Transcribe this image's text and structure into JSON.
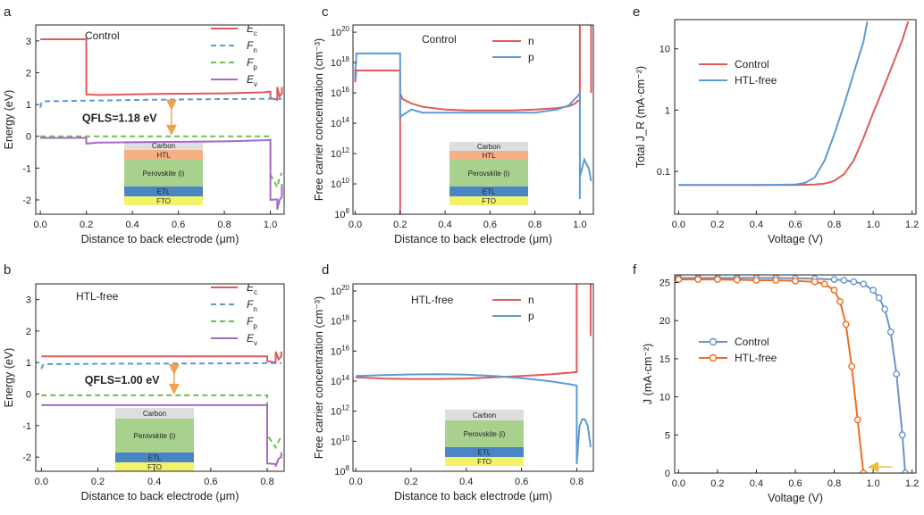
{
  "colors": {
    "red": "#e05a5a",
    "blue": "#5b9bd5",
    "green": "#6cc24a",
    "purple": "#a968c8",
    "orange": "#f0a14d",
    "sblue": "#6b93c9",
    "sorange": "#f26b1d",
    "yellow": "#f5b93a"
  },
  "stacks": {
    "with_htl": [
      {
        "label": "Carbon",
        "color": "#dedede"
      },
      {
        "label": "HTL",
        "color": "#f4b183"
      },
      {
        "label": "Perovskite (i)",
        "color": "#a9d18e"
      },
      {
        "label": "ETL",
        "color": "#4a86c5"
      },
      {
        "label": "FTO",
        "color": "#f3f36a"
      }
    ],
    "htl_free": [
      {
        "label": "Carbon",
        "color": "#dedede"
      },
      {
        "label": "Perovskite (i)",
        "color": "#a9d18e"
      },
      {
        "label": "ETL",
        "color": "#4a86c5"
      },
      {
        "label": "FTO",
        "color": "#f3f36a"
      }
    ]
  },
  "chart_data": [
    {
      "panel": "a",
      "type": "line",
      "title": "Control",
      "xlabel": "Distance to back electrode (μm)",
      "ylabel": "Energy (eV)",
      "xlim": [
        -0.02,
        1.06
      ],
      "ylim": [
        -2.45,
        3.5
      ],
      "xticks": [
        0.0,
        0.2,
        0.4,
        0.6,
        0.8,
        1.0
      ],
      "yticks": [
        -2,
        -1,
        0,
        1,
        2,
        3
      ],
      "annotation": "QFLS=1.18 eV",
      "series": [
        {
          "name": "E",
          "sub": "c",
          "style": "solid",
          "color": "red",
          "x": [
            0,
            0.2,
            0.2,
            0.25,
            0.5,
            0.8,
            0.97,
            0.99,
            1.0,
            1.0,
            1.03,
            1.03,
            1.04,
            1.045,
            1.05,
            1.05
          ],
          "y": [
            3.05,
            3.05,
            1.32,
            1.3,
            1.33,
            1.35,
            1.38,
            1.4,
            1.4,
            1.2,
            1.15,
            1.55,
            1.25,
            1.3,
            1.35,
            1.55
          ]
        },
        {
          "name": "F",
          "sub": "n",
          "style": "dash",
          "color": "blue",
          "x": [
            0,
            0.005,
            0.01,
            0.2,
            0.5,
            0.8,
            1.0,
            1.05
          ],
          "y": [
            0.9,
            1.05,
            1.1,
            1.12,
            1.15,
            1.17,
            1.18,
            1.18
          ]
        },
        {
          "name": "F",
          "sub": "p",
          "style": "dash",
          "color": "green",
          "x": [
            0,
            0.2,
            0.5,
            1.0,
            1.0,
            1.03,
            1.04,
            1.05
          ],
          "y": [
            0.0,
            0.0,
            0.0,
            0.0,
            -1.2,
            -1.6,
            -1.3,
            -1.15
          ]
        },
        {
          "name": "E",
          "sub": "v",
          "style": "solid",
          "color": "purple",
          "x": [
            0,
            0.2,
            0.2,
            0.25,
            0.5,
            0.8,
            0.99,
            1.0,
            1.0,
            1.03,
            1.03,
            1.04,
            1.05,
            1.05
          ],
          "y": [
            -0.05,
            -0.05,
            -0.23,
            -0.2,
            -0.18,
            -0.16,
            -0.12,
            -0.12,
            -2.0,
            -1.98,
            -2.3,
            -2.0,
            -1.9,
            -1.5
          ]
        }
      ]
    },
    {
      "panel": "b",
      "type": "line",
      "title": "HTL-free",
      "xlabel": "Distance to back electrode (μm)",
      "ylabel": "Energy (eV)",
      "xlim": [
        -0.02,
        0.86
      ],
      "ylim": [
        -2.45,
        3.5
      ],
      "xticks": [
        0.0,
        0.2,
        0.4,
        0.6,
        0.8
      ],
      "yticks": [
        -2,
        -1,
        0,
        1,
        2,
        3
      ],
      "annotation": "QFLS=1.00 eV",
      "series": [
        {
          "name": "E",
          "sub": "c",
          "style": "solid",
          "color": "red",
          "x": [
            0,
            0.2,
            0.5,
            0.78,
            0.8,
            0.8,
            0.83,
            0.83,
            0.84,
            0.85,
            0.85
          ],
          "y": [
            1.2,
            1.2,
            1.2,
            1.2,
            1.2,
            1.05,
            1.0,
            1.35,
            1.1,
            1.2,
            1.35
          ]
        },
        {
          "name": "F",
          "sub": "n",
          "style": "dash",
          "color": "blue",
          "x": [
            0,
            0.005,
            0.01,
            0.2,
            0.5,
            0.8,
            0.85
          ],
          "y": [
            0.8,
            0.92,
            0.95,
            0.96,
            0.97,
            0.98,
            0.98
          ]
        },
        {
          "name": "F",
          "sub": "p",
          "style": "dash",
          "color": "green",
          "x": [
            0,
            0.2,
            0.5,
            0.8,
            0.8,
            0.83,
            0.84,
            0.85
          ],
          "y": [
            -0.04,
            -0.04,
            -0.04,
            -0.04,
            -1.3,
            -1.7,
            -1.5,
            -1.35
          ]
        },
        {
          "name": "E",
          "sub": "v",
          "style": "solid",
          "color": "purple",
          "x": [
            0,
            0.2,
            0.5,
            0.78,
            0.8,
            0.8,
            0.83,
            0.83,
            0.84,
            0.85,
            0.85
          ],
          "y": [
            -0.35,
            -0.35,
            -0.35,
            -0.35,
            -0.35,
            -2.2,
            -2.22,
            -2.3,
            -2.05,
            -2.0,
            -1.85
          ]
        }
      ]
    },
    {
      "panel": "c",
      "type": "line",
      "yscale": "log",
      "title": "Control",
      "xlabel": "Distance to back electrode (μm)",
      "ylabel": "Free carrier concentration (cm⁻³)",
      "xlim": [
        -0.01,
        1.06
      ],
      "ylim": [
        100000000.0,
        3e+20
      ],
      "xticks": [
        0.0,
        0.2,
        0.4,
        0.6,
        0.8,
        1.0
      ],
      "yticks": [
        100000000.0,
        10000000000.0,
        1000000000000.0,
        100000000000000.0,
        1e+16,
        1e+18,
        1e+20
      ],
      "series": [
        {
          "name": "n",
          "color": "red",
          "x": [
            0,
            0.0,
            0.005,
            0.2,
            0.2,
            0.2,
            0.21,
            0.25,
            0.3,
            0.4,
            0.5,
            0.6,
            0.7,
            0.8,
            0.9,
            0.95,
            0.98,
            0.99,
            1.0,
            1.0,
            1.05,
            1.05
          ],
          "y": [
            4e+17,
            5e+16,
            3e+17,
            3e+17,
            100000000.0,
            1e+16,
            4000000000000000.0,
            2000000000000000.0,
            1200000000000000.0,
            800000000000000.0,
            700000000000000.0,
            700000000000000.0,
            700000000000000.0,
            800000000000000.0,
            1000000000000000.0,
            1300000000000000.0,
            2000000000000000.0,
            3000000000000000.0,
            3000000000000000.0,
            5e+20,
            5e+20,
            1e+16
          ]
        },
        {
          "name": "p",
          "color": "blue",
          "x": [
            0,
            0.005,
            0.2,
            0.2,
            0.205,
            0.25,
            0.3,
            0.4,
            0.5,
            0.6,
            0.7,
            0.8,
            0.9,
            0.95,
            0.99,
            1.0,
            1.0,
            1.0,
            1.02,
            1.04,
            1.05
          ],
          "y": [
            8e+16,
            4e+18,
            4e+18,
            200000000000000.0,
            300000000000000.0,
            800000000000000.0,
            500000000000000.0,
            500000000000000.0,
            500000000000000.0,
            500000000000000.0,
            500000000000000.0,
            500000000000000.0,
            800000000000000.0,
            1500000000000000.0,
            6000000000000000.0,
            1e+16,
            1000000000.0,
            30000000000.0,
            400000000000.0,
            100000000000.0,
            15000000000.0
          ]
        }
      ]
    },
    {
      "panel": "d",
      "type": "line",
      "yscale": "log",
      "title": "HTL-free",
      "xlabel": "Distance to back electrode (μm)",
      "ylabel": "Free carrier concentration (cm⁻³)",
      "xlim": [
        -0.01,
        0.86
      ],
      "ylim": [
        100000000.0,
        3e+20
      ],
      "xticks": [
        0.0,
        0.2,
        0.4,
        0.6,
        0.8
      ],
      "yticks": [
        100000000.0,
        10000000000.0,
        1000000000000.0,
        100000000000000.0,
        1e+16,
        1e+18,
        1e+20
      ],
      "series": [
        {
          "name": "n",
          "color": "red",
          "x": [
            0,
            0.1,
            0.2,
            0.3,
            0.4,
            0.5,
            0.6,
            0.7,
            0.8,
            0.8,
            0.85,
            0.85
          ],
          "y": [
            180000000000000.0,
            150000000000000.0,
            140000000000000.0,
            140000000000000.0,
            150000000000000.0,
            180000000000000.0,
            220000000000000.0,
            280000000000000.0,
            400000000000000.0,
            5e+20,
            5e+20,
            1e+17
          ]
        },
        {
          "name": "p",
          "color": "blue",
          "x": [
            0,
            0.1,
            0.2,
            0.3,
            0.4,
            0.5,
            0.6,
            0.7,
            0.78,
            0.8,
            0.8,
            0.81,
            0.82,
            0.83,
            0.84,
            0.85
          ],
          "y": [
            220000000000000.0,
            250000000000000.0,
            280000000000000.0,
            290000000000000.0,
            270000000000000.0,
            220000000000000.0,
            160000000000000.0,
            100000000000000.0,
            60000000000000.0,
            50000000000000.0,
            300000000.0,
            100000000000.0,
            300000000000.0,
            280000000000.0,
            100000000000.0,
            4000000000.0
          ]
        }
      ]
    },
    {
      "panel": "e",
      "type": "line",
      "yscale": "log",
      "xlabel": "Voltage  (V)",
      "ylabel": "Total J_R (mA·cm⁻²)",
      "xlim": [
        -0.02,
        1.22
      ],
      "ylim": [
        0.02,
        30
      ],
      "xticks": [
        0.0,
        0.2,
        0.4,
        0.6,
        0.8,
        1.0,
        1.2
      ],
      "yticks": [
        0.1,
        1,
        10
      ],
      "series": [
        {
          "name": "Control",
          "color": "red",
          "x": [
            0,
            0.2,
            0.4,
            0.6,
            0.7,
            0.75,
            0.8,
            0.85,
            0.9,
            0.95,
            1.0,
            1.05,
            1.1,
            1.15,
            1.18
          ],
          "y": [
            0.06,
            0.06,
            0.06,
            0.06,
            0.061,
            0.063,
            0.07,
            0.09,
            0.15,
            0.35,
            0.9,
            2.2,
            5.5,
            14,
            28
          ]
        },
        {
          "name": "HTL-free",
          "color": "blue",
          "x": [
            0,
            0.2,
            0.4,
            0.6,
            0.65,
            0.7,
            0.75,
            0.8,
            0.85,
            0.9,
            0.95,
            0.97
          ],
          "y": [
            0.06,
            0.06,
            0.06,
            0.061,
            0.065,
            0.08,
            0.15,
            0.4,
            1.2,
            4,
            13,
            28
          ]
        }
      ]
    },
    {
      "panel": "f",
      "type": "line",
      "xlabel": "Voltage  (V)",
      "ylabel": "J (mA·cm⁻²)",
      "xlim": [
        -0.02,
        1.22
      ],
      "ylim": [
        0,
        26
      ],
      "xticks": [
        0.0,
        0.2,
        0.4,
        0.6,
        0.8,
        1.0,
        1.2
      ],
      "yticks": [
        0,
        5,
        10,
        15,
        20,
        25
      ],
      "series": [
        {
          "name": "Control",
          "color": "sblue",
          "x": [
            0,
            0.1,
            0.2,
            0.3,
            0.4,
            0.5,
            0.6,
            0.7,
            0.8,
            0.85,
            0.9,
            0.95,
            1.0,
            1.03,
            1.06,
            1.09,
            1.12,
            1.15,
            1.165
          ],
          "y": [
            25.6,
            25.6,
            25.6,
            25.6,
            25.6,
            25.6,
            25.55,
            25.5,
            25.4,
            25.3,
            25.1,
            24.8,
            24.0,
            23.0,
            21.5,
            18.5,
            13,
            5,
            0
          ]
        },
        {
          "name": "HTL-free",
          "color": "sorange",
          "x": [
            0,
            0.1,
            0.2,
            0.3,
            0.4,
            0.5,
            0.6,
            0.7,
            0.75,
            0.8,
            0.83,
            0.86,
            0.89,
            0.92,
            0.95
          ],
          "y": [
            25.4,
            25.4,
            25.4,
            25.35,
            25.3,
            25.3,
            25.2,
            25.1,
            24.8,
            24.0,
            22.5,
            19.5,
            14,
            7,
            0
          ]
        }
      ]
    }
  ]
}
